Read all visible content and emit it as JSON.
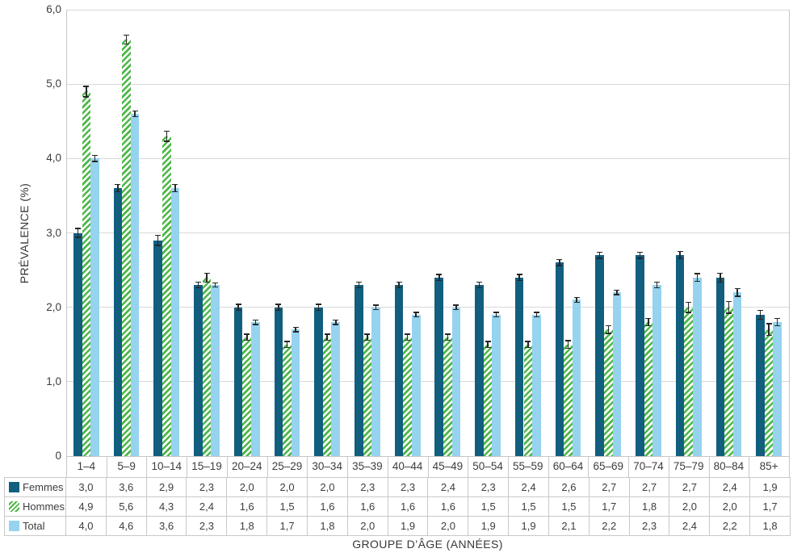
{
  "chart_data": {
    "type": "bar",
    "title": "",
    "xlabel": "GROUPE D’ÂGE (ANNÉES)",
    "ylabel": "PRÉVALENCE (%)",
    "ylim": [
      0,
      6
    ],
    "grid": "horizontal",
    "legend_position": "table-left-column",
    "decimal_separator": ",",
    "y_ticks": [
      {
        "value": 6,
        "label": "6,0"
      },
      {
        "value": 5,
        "label": "5,0"
      },
      {
        "value": 4,
        "label": "4,0"
      },
      {
        "value": 3,
        "label": "3,0"
      },
      {
        "value": 2,
        "label": "2,0"
      },
      {
        "value": 1,
        "label": "1,0"
      },
      {
        "value": 0,
        "label": "0"
      }
    ],
    "categories": [
      "1–4",
      "5–9",
      "10–14",
      "15–19",
      "20–24",
      "25–29",
      "30–34",
      "35–39",
      "40–44",
      "45–49",
      "50–54",
      "55–59",
      "60–64",
      "65–69",
      "70–74",
      "75–79",
      "80–84",
      "85+"
    ],
    "series": [
      {
        "name": "Femmes",
        "style": "solid",
        "color": "#115e7f",
        "values": [
          3.0,
          3.6,
          2.9,
          2.3,
          2.0,
          2.0,
          2.0,
          2.3,
          2.3,
          2.4,
          2.3,
          2.4,
          2.6,
          2.7,
          2.7,
          2.7,
          2.4,
          1.9
        ],
        "errors": [
          0.06,
          0.05,
          0.07,
          0.04,
          0.04,
          0.04,
          0.04,
          0.04,
          0.04,
          0.04,
          0.04,
          0.04,
          0.04,
          0.04,
          0.04,
          0.05,
          0.06,
          0.06
        ]
      },
      {
        "name": "Hommes",
        "style": "hatched",
        "color": "#4eb748",
        "values": [
          4.9,
          5.6,
          4.3,
          2.4,
          1.6,
          1.5,
          1.6,
          1.6,
          1.6,
          1.6,
          1.5,
          1.5,
          1.5,
          1.7,
          1.8,
          2.0,
          2.0,
          1.7
        ],
        "errors": [
          0.07,
          0.06,
          0.07,
          0.06,
          0.04,
          0.04,
          0.04,
          0.04,
          0.04,
          0.04,
          0.04,
          0.04,
          0.05,
          0.05,
          0.05,
          0.07,
          0.08,
          0.08
        ]
      },
      {
        "name": "Total",
        "style": "solid",
        "color": "#96d3ef",
        "values": [
          4.0,
          4.6,
          3.6,
          2.3,
          1.8,
          1.7,
          1.8,
          2.0,
          1.9,
          2.0,
          1.9,
          1.9,
          2.1,
          2.2,
          2.3,
          2.4,
          2.2,
          1.8
        ],
        "errors": [
          0.04,
          0.04,
          0.05,
          0.03,
          0.03,
          0.03,
          0.03,
          0.03,
          0.03,
          0.03,
          0.03,
          0.03,
          0.03,
          0.03,
          0.04,
          0.05,
          0.05,
          0.05
        ]
      }
    ],
    "palette": {
      "gridline": "#d9d9d9",
      "axis_line": "#c6c6c6",
      "table_border": "#c9c9c9",
      "error_bar": "#262626",
      "text": "#3d3d3d"
    }
  }
}
